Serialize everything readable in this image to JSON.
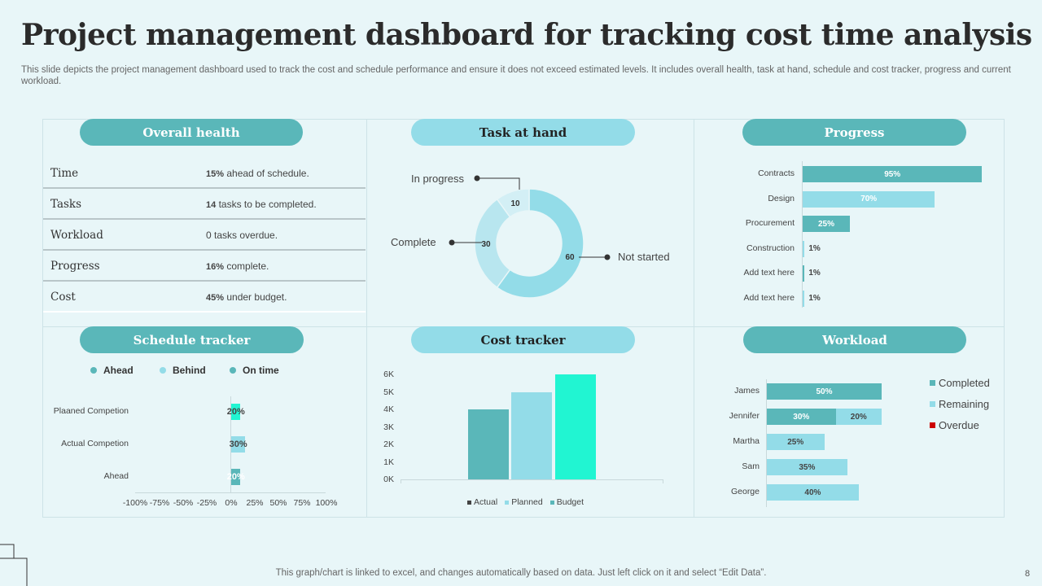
{
  "title": "Project management dashboard for tracking cost time analysis",
  "subtitle": "This slide depicts the project management dashboard used to track the cost and schedule performance and ensure it does not exceed estimated levels. It includes overall health, task at hand, schedule and cost tracker, progress and current workload.",
  "panels": {
    "overall_health": "Overall health",
    "task_at_hand": "Task at hand",
    "progress": "Progress",
    "schedule_tracker": "Schedule tracker",
    "cost_tracker": "Cost tracker",
    "workload": "Workload"
  },
  "overall_health": [
    {
      "label": "Time",
      "num": "15%",
      "text": " ahead of schedule."
    },
    {
      "label": "Tasks",
      "num": "14",
      "text": " tasks to be completed."
    },
    {
      "label": "Workload",
      "num": "",
      "text": "0 tasks overdue."
    },
    {
      "label": "Progress",
      "num": "16%",
      "text": " complete."
    },
    {
      "label": "Cost",
      "num": "45%",
      "text": " under budget."
    }
  ],
  "task_at_hand": {
    "labels": {
      "in_progress": "In progress",
      "complete": "Complete",
      "not_started": "Not started"
    },
    "values": {
      "in_progress": "10",
      "complete": "30",
      "not_started": "60"
    },
    "colors": {
      "in_progress": "#d3eff5",
      "complete": "#b8e6ef",
      "not_started": "#93dce8"
    }
  },
  "chart_data": [
    {
      "type": "bar",
      "name": "Progress",
      "categories": [
        "Contracts",
        "Design",
        "Procurement",
        "Construction",
        "Add text here",
        "Add text here"
      ],
      "values": [
        95,
        70,
        25,
        1,
        1,
        1
      ],
      "labels": [
        "95%",
        "70%",
        "25%",
        "1%",
        "1%",
        "1%"
      ]
    },
    {
      "type": "bar",
      "name": "Schedule tracker",
      "categories": [
        "Plaaned Competion",
        "Actual Competion",
        "Ahead"
      ],
      "values": [
        20,
        30,
        20
      ],
      "labels": [
        "20%",
        "30%",
        "20%"
      ],
      "legend": [
        "Ahead",
        "Behind",
        "On time"
      ],
      "xticks": [
        "-100%",
        "-75%",
        "-50%",
        "-25%",
        "0%",
        "25%",
        "50%",
        "75%",
        "100%"
      ],
      "xlim": [
        -100,
        100
      ]
    },
    {
      "type": "bar",
      "name": "Cost tracker",
      "categories": [
        "Actual",
        "Planned",
        "Budget"
      ],
      "values": [
        4000,
        5000,
        6000
      ],
      "yticks": [
        "6K",
        "5K",
        "4K",
        "3K",
        "2K",
        "1K",
        "0K"
      ],
      "ylim": [
        0,
        6000
      ]
    },
    {
      "type": "bar",
      "name": "Workload",
      "categories": [
        "James",
        "Jennifer",
        "Martha",
        "Sam",
        "George"
      ],
      "series": [
        {
          "name": "Completed",
          "values": [
            50,
            30,
            0,
            0,
            0
          ]
        },
        {
          "name": "Remaining",
          "values": [
            0,
            20,
            25,
            35,
            40
          ]
        },
        {
          "name": "Overdue",
          "values": [
            0,
            0,
            0,
            0,
            0
          ]
        }
      ]
    }
  ],
  "colors": {
    "teal": "#5ab7b9",
    "light": "#93dce8",
    "mint": "#21f5d2",
    "overdue": "#cc0000"
  },
  "footer": "This graph/chart is linked to excel, and changes automatically based on data. Just left click on it and select “Edit Data”.",
  "page_number": "8"
}
